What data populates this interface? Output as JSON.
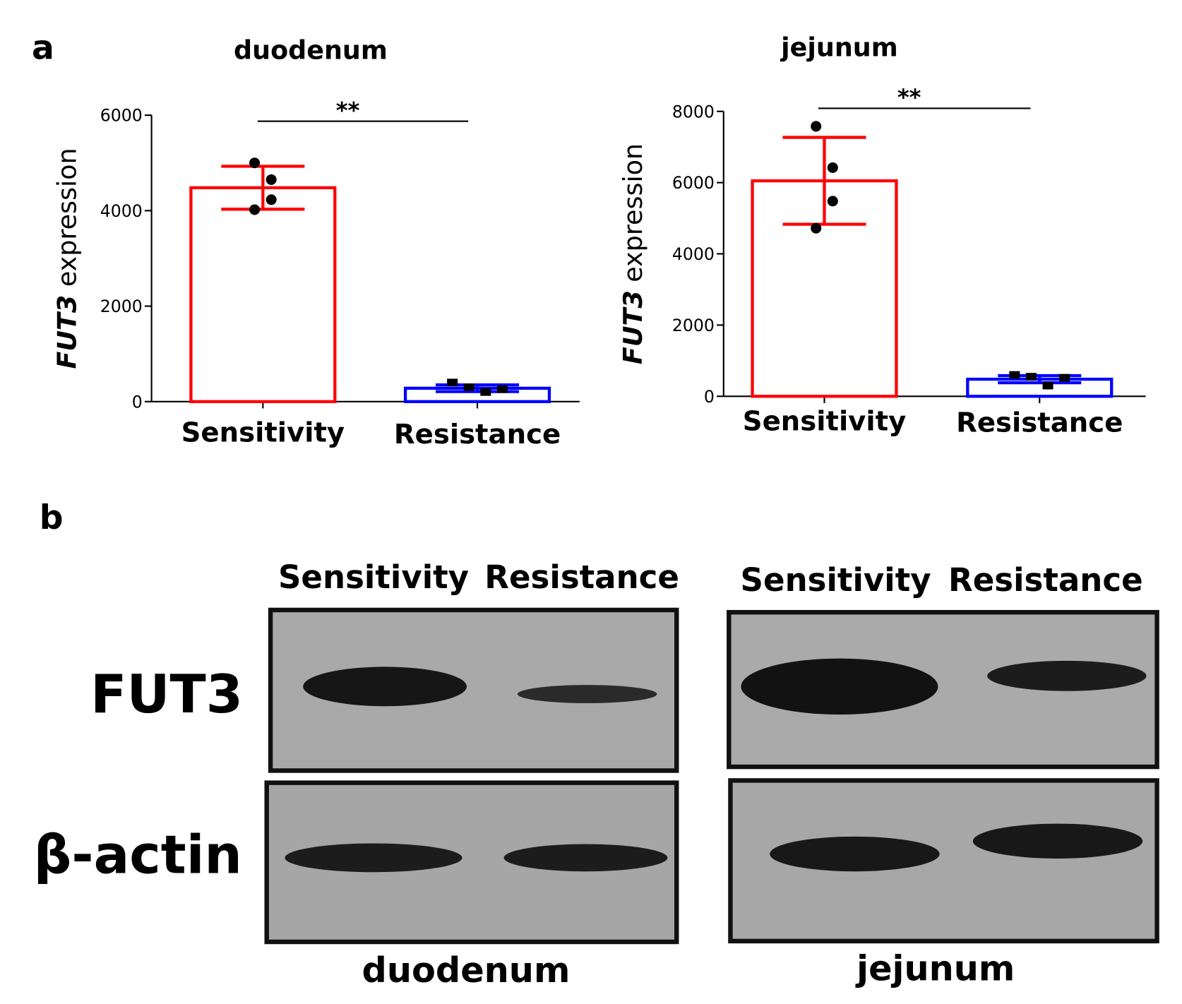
{
  "panel_labels": [
    "a",
    "b"
  ],
  "chart_data": [
    {
      "type": "bar",
      "title": "duodenum",
      "categories": [
        "Sensitivity",
        "Resistance"
      ],
      "values": [
        4480,
        280
      ],
      "errors": [
        450,
        70
      ],
      "colors": [
        "#ff0000",
        "#0000ff"
      ],
      "points": [
        [
          5000,
          4650,
          4230,
          4020
        ],
        [
          400,
          300,
          200,
          260
        ]
      ],
      "ylabel_italic": "FUT3",
      "ylabel": "expression",
      "ylim": [
        0,
        6000
      ],
      "yticks": [
        0,
        2000,
        4000,
        6000
      ],
      "significance": "**"
    },
    {
      "type": "bar",
      "title": "jejunum",
      "categories": [
        "Sensitivity",
        "Resistance"
      ],
      "values": [
        6050,
        480
      ],
      "errors": [
        1220,
        100
      ],
      "colors": [
        "#ff0000",
        "#0000ff"
      ],
      "points": [
        [
          7580,
          6420,
          5480,
          4720
        ],
        [
          600,
          550,
          300,
          520
        ]
      ],
      "ylabel_italic": "FUT3",
      "ylabel": "expression",
      "ylim": [
        0,
        8000
      ],
      "yticks": [
        0,
        2000,
        4000,
        6000,
        8000
      ],
      "significance": "**"
    }
  ],
  "blots": {
    "rows": [
      "FUT3",
      "β-actin"
    ],
    "panels": [
      {
        "lanes": [
          "Sensitivity",
          "Resistance"
        ],
        "caption": "duodenum"
      },
      {
        "lanes": [
          "Sensitivity",
          "Resistance"
        ],
        "caption": "jejunum"
      }
    ]
  }
}
